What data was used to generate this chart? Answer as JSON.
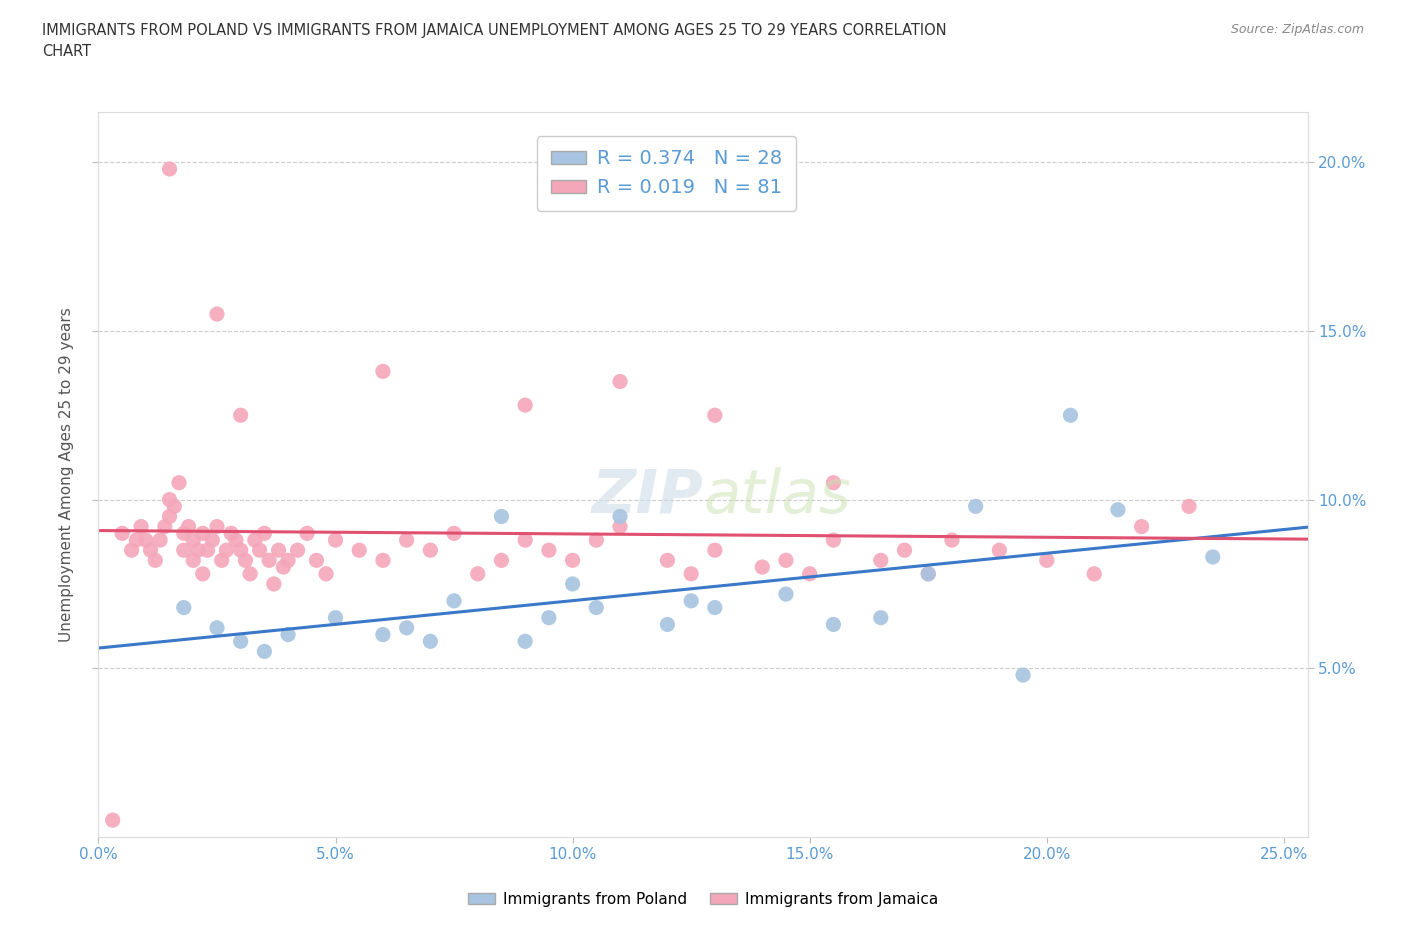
{
  "title": "IMMIGRANTS FROM POLAND VS IMMIGRANTS FROM JAMAICA UNEMPLOYMENT AMONG AGES 25 TO 29 YEARS CORRELATION\nCHART",
  "source_text": "Source: ZipAtlas.com",
  "ylabel": "Unemployment Among Ages 25 to 29 years",
  "xlim": [
    0.0,
    0.255
  ],
  "ylim": [
    0.0,
    0.215
  ],
  "xtick_vals": [
    0.0,
    0.05,
    0.1,
    0.15,
    0.2,
    0.25
  ],
  "xtick_labels": [
    "0.0%",
    "5.0%",
    "10.0%",
    "15.0%",
    "20.0%",
    "25.0%"
  ],
  "ytick_vals": [
    0.05,
    0.1,
    0.15,
    0.2
  ],
  "ytick_labels": [
    "5.0%",
    "10.0%",
    "15.0%",
    "20.0%"
  ],
  "grid_color": "#cccccc",
  "background_color": "#ffffff",
  "poland_color": "#a8c4e0",
  "jamaica_color": "#f4a7b9",
  "poland_line_color": "#3a78c9",
  "jamaica_line_color": "#e05070",
  "poland_R": 0.374,
  "poland_N": 28,
  "jamaica_R": 0.019,
  "jamaica_N": 81,
  "tick_color": "#5b9bd5",
  "poland_x": [
    0.018,
    0.025,
    0.03,
    0.035,
    0.04,
    0.05,
    0.06,
    0.065,
    0.07,
    0.075,
    0.085,
    0.09,
    0.095,
    0.1,
    0.105,
    0.11,
    0.12,
    0.125,
    0.13,
    0.145,
    0.155,
    0.165,
    0.175,
    0.185,
    0.195,
    0.205,
    0.215,
    0.235
  ],
  "poland_y": [
    0.068,
    0.062,
    0.058,
    0.055,
    0.06,
    0.065,
    0.06,
    0.062,
    0.058,
    0.07,
    0.095,
    0.058,
    0.065,
    0.075,
    0.068,
    0.095,
    0.063,
    0.07,
    0.068,
    0.072,
    0.063,
    0.065,
    0.078,
    0.098,
    0.048,
    0.125,
    0.097,
    0.083
  ],
  "jamaica_x": [
    0.005,
    0.007,
    0.008,
    0.009,
    0.01,
    0.011,
    0.012,
    0.013,
    0.014,
    0.015,
    0.015,
    0.016,
    0.017,
    0.018,
    0.018,
    0.019,
    0.02,
    0.02,
    0.021,
    0.022,
    0.022,
    0.023,
    0.024,
    0.025,
    0.026,
    0.027,
    0.028,
    0.029,
    0.03,
    0.031,
    0.032,
    0.033,
    0.034,
    0.035,
    0.036,
    0.037,
    0.038,
    0.039,
    0.04,
    0.042,
    0.044,
    0.046,
    0.048,
    0.05,
    0.055,
    0.06,
    0.065,
    0.07,
    0.075,
    0.08,
    0.085,
    0.09,
    0.095,
    0.1,
    0.105,
    0.11,
    0.12,
    0.125,
    0.13,
    0.14,
    0.145,
    0.15,
    0.155,
    0.165,
    0.17,
    0.175,
    0.18,
    0.19,
    0.2,
    0.21,
    0.22,
    0.23,
    0.015,
    0.025,
    0.03,
    0.06,
    0.09,
    0.11,
    0.13,
    0.155,
    0.003
  ],
  "jamaica_y": [
    0.09,
    0.085,
    0.088,
    0.092,
    0.088,
    0.085,
    0.082,
    0.088,
    0.092,
    0.095,
    0.1,
    0.098,
    0.105,
    0.09,
    0.085,
    0.092,
    0.088,
    0.082,
    0.085,
    0.078,
    0.09,
    0.085,
    0.088,
    0.092,
    0.082,
    0.085,
    0.09,
    0.088,
    0.085,
    0.082,
    0.078,
    0.088,
    0.085,
    0.09,
    0.082,
    0.075,
    0.085,
    0.08,
    0.082,
    0.085,
    0.09,
    0.082,
    0.078,
    0.088,
    0.085,
    0.082,
    0.088,
    0.085,
    0.09,
    0.078,
    0.082,
    0.088,
    0.085,
    0.082,
    0.088,
    0.092,
    0.082,
    0.078,
    0.085,
    0.08,
    0.082,
    0.078,
    0.088,
    0.082,
    0.085,
    0.078,
    0.088,
    0.085,
    0.082,
    0.078,
    0.092,
    0.098,
    0.198,
    0.155,
    0.125,
    0.138,
    0.128,
    0.135,
    0.125,
    0.105,
    0.005
  ]
}
